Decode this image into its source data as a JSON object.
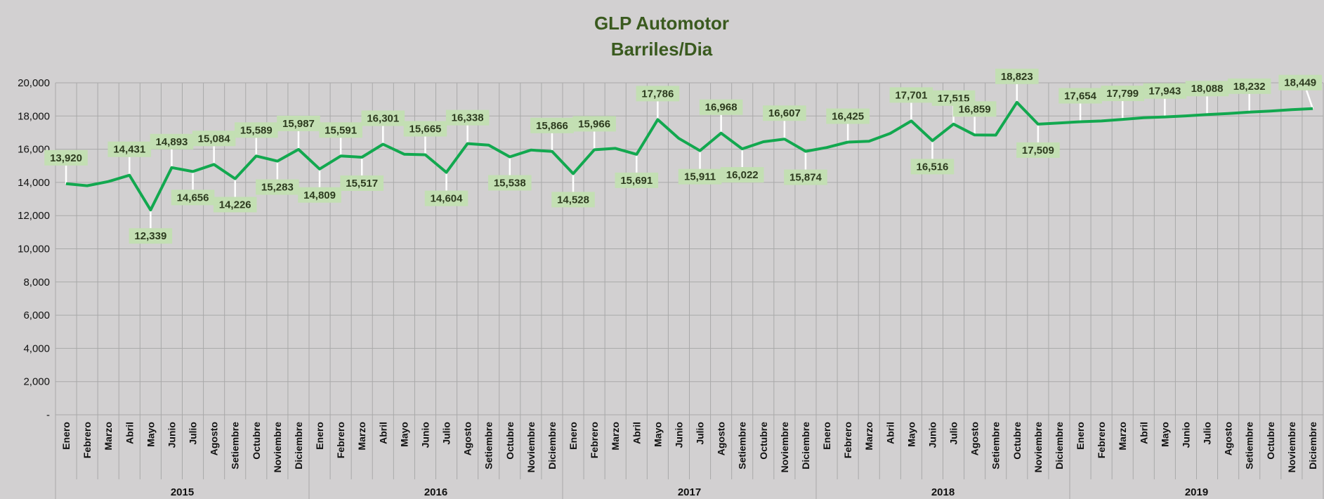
{
  "chart_data": {
    "type": "line",
    "title_lines": [
      "GLP Automotor",
      "Barriles/Dia"
    ],
    "xlabel": "",
    "ylabel": "",
    "ylim": [
      0,
      20000
    ],
    "y_ticks": [
      0,
      2000,
      4000,
      6000,
      8000,
      10000,
      12000,
      14000,
      16000,
      18000,
      20000
    ],
    "y_tick_labels": [
      "-",
      "2,000",
      "4,000",
      "6,000",
      "8,000",
      "10,000",
      "12,000",
      "14,000",
      "16,000",
      "18,000",
      "20,000"
    ],
    "grid": true,
    "legend": "none",
    "years": [
      "2015",
      "2016",
      "2017",
      "2018",
      "2019"
    ],
    "months": [
      "Enero",
      "Febrero",
      "Marzo",
      "Abril",
      "Mayo",
      "Junio",
      "Julio",
      "Agosto",
      "Setiembre",
      "Octubre",
      "Noviembre",
      "Diciembre"
    ],
    "series": [
      {
        "values": [
          13920,
          13800,
          14050,
          14431,
          12339,
          14893,
          14656,
          15084,
          14226,
          15589,
          15283,
          15987,
          14809,
          15591,
          15517,
          16301,
          15700,
          15665,
          14604,
          16338,
          16250,
          15538,
          15950,
          15866,
          14528,
          15966,
          16050,
          15691,
          17786,
          16650,
          15911,
          16968,
          16022,
          16450,
          16607,
          15874,
          16100,
          16425,
          16480,
          16950,
          17701,
          16516,
          17515,
          16859,
          16850,
          18823,
          17509,
          17580,
          17654,
          17700,
          17799,
          17900,
          17943,
          18010,
          18088,
          18150,
          18232,
          18300,
          18380,
          18449
        ],
        "data_labels": [
          "13,920",
          null,
          null,
          "14,431",
          "12,339",
          "14,893",
          "14,656",
          "15,084",
          "14,226",
          "15,589",
          "15,283",
          "15,987",
          "14,809",
          "15,591",
          "15,517",
          "16,301",
          null,
          "15,665",
          "14,604",
          "16,338",
          null,
          "15,538",
          null,
          "15,866",
          "14,528",
          "15,966",
          null,
          "15,691",
          "17,786",
          null,
          "15,911",
          "16,968",
          "16,022",
          null,
          "16,607",
          "15,874",
          null,
          "16,425",
          null,
          null,
          "17,701",
          "16,516",
          "17,515",
          "16,859",
          null,
          "18,823",
          "17,509",
          null,
          "17,654",
          null,
          "17,799",
          null,
          "17,943",
          null,
          "18,088",
          null,
          "18,232",
          null,
          null,
          "18,449"
        ]
      }
    ],
    "colors": {
      "line": "#12a84f",
      "label_bg": "#c3dfb3",
      "label_text": "#2d3b1f",
      "leader": "#ffffff",
      "grid": "#a9a9a9",
      "title": "#3a5a1f"
    }
  }
}
